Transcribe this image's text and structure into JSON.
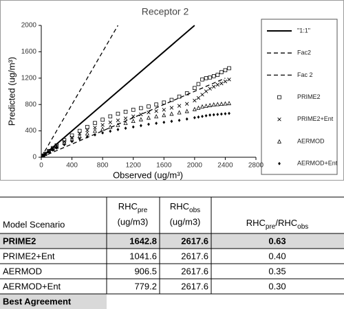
{
  "chart_data": {
    "type": "scatter",
    "title": "Receptor 2",
    "x_label": "Observed (ug/m³)",
    "y_label": "Predicted (ug/m³)",
    "xlim": [
      0,
      2800
    ],
    "ylim": [
      0,
      2000
    ],
    "xticks": [
      0,
      400,
      800,
      1200,
      1600,
      2000,
      2400,
      2800
    ],
    "yticks": [
      0,
      400,
      800,
      1200,
      1600,
      2000
    ],
    "grid": false,
    "legend": "right",
    "series": [
      {
        "name": "\"1:1\"",
        "color": "#000000",
        "kind": "line",
        "dashed": false,
        "x": [
          0,
          2000
        ],
        "values": [
          0,
          2000
        ]
      },
      {
        "name": "Fac2",
        "color": "#000000",
        "kind": "line",
        "dashed": true,
        "x": [
          0,
          1000
        ],
        "values": [
          0,
          2000
        ]
      },
      {
        "name": "Fac 2",
        "color": "#000000",
        "kind": "line",
        "dashed": true,
        "x": [
          0,
          2400
        ],
        "values": [
          0,
          1200
        ]
      },
      {
        "name": "PRIME2",
        "color": "#000000",
        "kind": "marker",
        "marker": "square",
        "x": [
          25,
          50,
          100,
          150,
          200,
          300,
          400,
          500,
          600,
          700,
          800,
          900,
          1000,
          1100,
          1200,
          1300,
          1400,
          1500,
          1600,
          1700,
          1800,
          1900,
          2000,
          2050,
          2100,
          2150,
          2200,
          2250,
          2300,
          2350,
          2400,
          2450
        ],
        "values": [
          25,
          50,
          95,
          140,
          180,
          260,
          330,
          400,
          460,
          520,
          570,
          620,
          660,
          690,
          720,
          745,
          770,
          800,
          830,
          870,
          920,
          970,
          1050,
          1110,
          1180,
          1200,
          1210,
          1230,
          1250,
          1290,
          1320,
          1350
        ]
      },
      {
        "name": "PRIME2+Ent",
        "color": "#000000",
        "kind": "marker",
        "marker": "cross",
        "x": [
          25,
          50,
          100,
          150,
          200,
          300,
          400,
          500,
          600,
          700,
          800,
          900,
          1000,
          1100,
          1200,
          1300,
          1400,
          1500,
          1600,
          1700,
          1800,
          1900,
          2000,
          2050,
          2100,
          2150,
          2200,
          2250,
          2300,
          2350,
          2400,
          2450
        ],
        "values": [
          25,
          50,
          90,
          130,
          170,
          240,
          300,
          360,
          410,
          450,
          490,
          530,
          560,
          590,
          620,
          650,
          680,
          700,
          720,
          750,
          780,
          810,
          860,
          900,
          950,
          1000,
          1040,
          1070,
          1100,
          1120,
          1150,
          1180
        ]
      },
      {
        "name": "AERMOD",
        "color": "#000000",
        "kind": "marker",
        "marker": "triangle",
        "x": [
          25,
          50,
          100,
          150,
          200,
          300,
          400,
          500,
          600,
          700,
          800,
          900,
          1000,
          1100,
          1200,
          1300,
          1400,
          1500,
          1600,
          1700,
          1800,
          1900,
          2000,
          2050,
          2100,
          2150,
          2200,
          2250,
          2300,
          2350,
          2400,
          2450
        ],
        "values": [
          25,
          50,
          90,
          125,
          160,
          220,
          270,
          320,
          360,
          400,
          430,
          460,
          490,
          520,
          550,
          575,
          600,
          620,
          640,
          660,
          680,
          700,
          730,
          750,
          770,
          780,
          790,
          800,
          805,
          810,
          815,
          820
        ]
      },
      {
        "name": "AERMOD+Ent",
        "color": "#000000",
        "kind": "marker",
        "marker": "diamond",
        "x": [
          25,
          50,
          100,
          150,
          200,
          300,
          400,
          500,
          600,
          700,
          800,
          900,
          1000,
          1100,
          1200,
          1300,
          1400,
          1500,
          1600,
          1700,
          1800,
          1900,
          2000,
          2050,
          2100,
          2150,
          2200,
          2250,
          2300,
          2350,
          2400,
          2450
        ],
        "values": [
          20,
          45,
          80,
          110,
          140,
          190,
          240,
          280,
          310,
          340,
          370,
          395,
          420,
          440,
          460,
          480,
          500,
          515,
          530,
          545,
          560,
          580,
          600,
          610,
          620,
          630,
          640,
          645,
          650,
          655,
          660,
          665
        ]
      }
    ]
  },
  "table": {
    "header": {
      "scenario": "Model Scenario",
      "pre": {
        "base": "RHC",
        "sub": "pre",
        "unit": "(ug/m3)"
      },
      "obs": {
        "base": "RHC",
        "sub": "obs",
        "unit": "(ug/m3)"
      },
      "ratio": {
        "base1": "RHC",
        "sub1": "pre",
        "sep": "/RHC",
        "sub2": "obs"
      }
    },
    "rows": [
      [
        "PRIME2",
        "1642.8",
        "2617.6",
        "0.63"
      ],
      [
        "PRIME2+Ent",
        "1041.6",
        "2617.6",
        "0.40"
      ],
      [
        "AERMOD",
        "906.5",
        "2617.6",
        "0.35"
      ],
      [
        "AERMOD+Ent",
        "779.2",
        "2617.6",
        "0.30"
      ]
    ],
    "highlight_row": 0,
    "highlight_label": "Best Agreement"
  }
}
